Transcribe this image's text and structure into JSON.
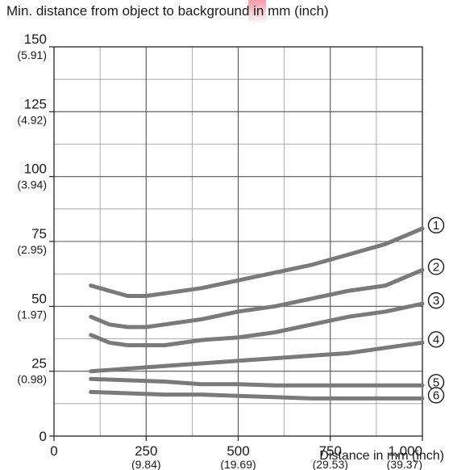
{
  "chart_data": {
    "type": "line",
    "title": "Min. distance from object to background in mm (inch)",
    "xlabel": "Distance in mm (inch)",
    "xlim": [
      0,
      1000
    ],
    "ylim": [
      0,
      150
    ],
    "grid": true,
    "x_ticks": [
      {
        "value": 0,
        "label": "0",
        "sub": ""
      },
      {
        "value": 250,
        "label": "250",
        "sub": "(9.84)"
      },
      {
        "value": 500,
        "label": "500",
        "sub": "(19.69)"
      },
      {
        "value": 750,
        "label": "750",
        "sub": "(29.53)"
      },
      {
        "value": 1000,
        "label": "1,000",
        "sub": "(39.37)"
      }
    ],
    "y_ticks": [
      {
        "value": 0,
        "label": "0",
        "sub": ""
      },
      {
        "value": 25,
        "label": "25",
        "sub": "(0.98)"
      },
      {
        "value": 50,
        "label": "50",
        "sub": "(1.97)"
      },
      {
        "value": 75,
        "label": "75",
        "sub": "(2.95)"
      },
      {
        "value": 100,
        "label": "100",
        "sub": "(3.94)"
      },
      {
        "value": 125,
        "label": "125",
        "sub": "(4.92)"
      },
      {
        "value": 150,
        "label": "150",
        "sub": "(5.91)"
      }
    ],
    "series": [
      {
        "name": "①",
        "x": [
          100,
          150,
          200,
          250,
          300,
          400,
          500,
          600,
          700,
          800,
          900,
          1000
        ],
        "y": [
          58,
          56,
          54,
          54,
          55,
          57,
          60,
          63,
          66,
          70,
          74,
          80
        ]
      },
      {
        "name": "②",
        "x": [
          100,
          150,
          200,
          250,
          300,
          400,
          500,
          600,
          700,
          800,
          900,
          1000
        ],
        "y": [
          46,
          43,
          42,
          42,
          43,
          45,
          48,
          50,
          53,
          56,
          58,
          64
        ]
      },
      {
        "name": "③",
        "x": [
          100,
          150,
          200,
          250,
          300,
          400,
          500,
          600,
          700,
          800,
          900,
          1000
        ],
        "y": [
          39,
          36,
          35,
          35,
          35,
          37,
          38,
          40,
          43,
          46,
          48,
          51
        ]
      },
      {
        "name": "④",
        "x": [
          100,
          200,
          300,
          400,
          500,
          600,
          700,
          800,
          900,
          1000
        ],
        "y": [
          25,
          26,
          27,
          28,
          29,
          30,
          31,
          32,
          34,
          36
        ]
      },
      {
        "name": "⑤",
        "x": [
          100,
          200,
          300,
          400,
          500,
          600,
          700,
          800,
          900,
          1000
        ],
        "y": [
          22,
          21.5,
          21,
          20,
          20,
          19.5,
          19.5,
          19.5,
          19.5,
          19.5
        ]
      },
      {
        "name": "⑥",
        "x": [
          100,
          200,
          300,
          400,
          500,
          600,
          700,
          800,
          900,
          1000
        ],
        "y": [
          17,
          16.5,
          16,
          16,
          15.5,
          15,
          14.5,
          14.5,
          14.5,
          14.5
        ]
      }
    ],
    "line_color": "#7a7a7a",
    "grid_color": "#555555"
  }
}
